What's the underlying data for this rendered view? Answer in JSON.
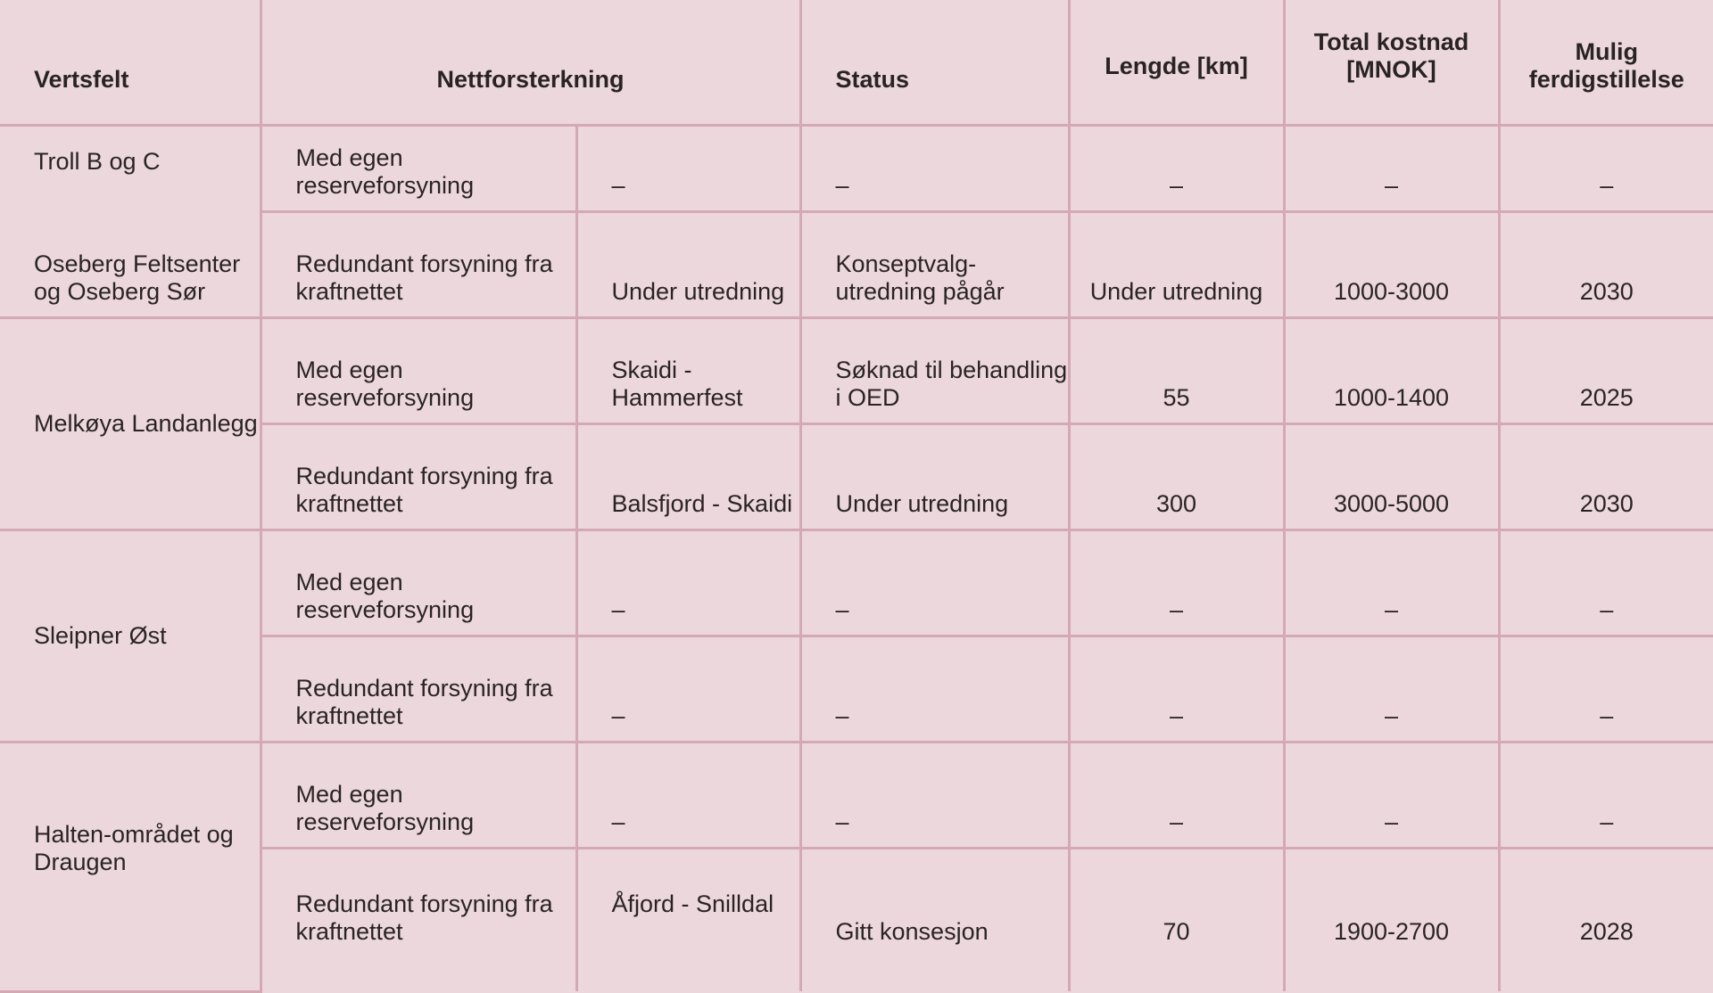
{
  "headers": {
    "vertsfelt": "Vertsfelt",
    "nettforsterkning": "Nettforsterkning",
    "status": "Status",
    "lengde": "Lengde [km]",
    "kostnad": "Total kostnad [MNOK]",
    "ferdig": "Mulig ferdigstillelse"
  },
  "rows": [
    {
      "vertsfelt": "Troll B og C",
      "type": "Med egen reserveforsyning",
      "strekning": "–",
      "status": "–",
      "lengde": "–",
      "kostnad": "–",
      "ferdig": "–"
    },
    {
      "vertsfelt": "Oseberg Feltsenter og Oseberg Sør",
      "type": "Redundant forsyning fra kraftnettet",
      "strekning": "Under utredning",
      "status": "Konseptvalg-utredning pågår",
      "lengde": "Under utredning",
      "kostnad": "1000-3000",
      "ferdig": "2030"
    },
    {
      "vertsfelt": "Melkøya Landanlegg",
      "type": "Med egen reserveforsyning",
      "strekning": "Skaidi - Hammerfest",
      "status": "Søknad til behandling i OED",
      "lengde": "55",
      "kostnad": "1000-1400",
      "ferdig": "2025"
    },
    {
      "type": "Redundant forsyning fra kraftnettet",
      "strekning": "Balsfjord - Skaidi",
      "status": "Under utredning",
      "lengde": "300",
      "kostnad": "3000-5000",
      "ferdig": "2030"
    },
    {
      "vertsfelt": "Sleipner Øst",
      "type": "Med egen reserveforsyning",
      "strekning": "–",
      "status": "–",
      "lengde": "–",
      "kostnad": "–",
      "ferdig": "–"
    },
    {
      "type": "Redundant forsyning fra kraftnettet",
      "strekning": "–",
      "status": "–",
      "lengde": "–",
      "kostnad": "–",
      "ferdig": "–"
    },
    {
      "vertsfelt": "Halten-området og Draugen",
      "type": "Med egen reserveforsyning",
      "strekning": "–",
      "status": "–",
      "lengde": "–",
      "kostnad": "–",
      "ferdig": "–"
    },
    {
      "type": "Redundant forsyning fra kraftnettet",
      "strekning": "Åfjord - Snilldal",
      "status": "Gitt konsesjon",
      "lengde": "70",
      "kostnad": "1900-2700",
      "ferdig": "2028"
    }
  ]
}
